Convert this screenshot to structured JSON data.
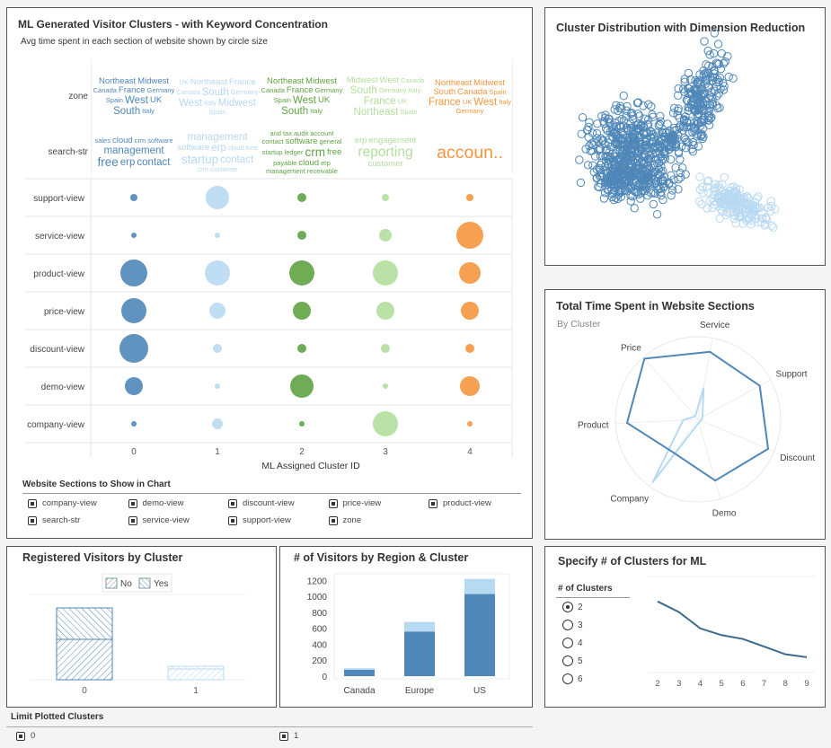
{
  "colors": {
    "cluster": [
      "#4f87b8",
      "#b8d9f2",
      "#5fa343",
      "#b2df9d",
      "#f5963f"
    ]
  },
  "bubble_panel": {
    "title": "ML Generated Visitor Clusters - with Keyword Concentration",
    "subtitle": "Avg time spent in each section of website shown by circle size",
    "cloud_rows": [
      "zone",
      "search-str"
    ],
    "clouds": {
      "zone": [
        [
          [
            "Northeast",
            2
          ],
          [
            "Midwest",
            2
          ],
          [
            "Canada",
            1
          ],
          [
            "France",
            2
          ],
          [
            "Germany",
            1
          ],
          [
            "Spain",
            1
          ],
          [
            "West",
            3
          ],
          [
            "UK",
            2
          ],
          [
            "South",
            3
          ],
          [
            "Italy",
            1
          ]
        ],
        [
          [
            "UK",
            1
          ],
          [
            "Northeast",
            2
          ],
          [
            "France",
            2
          ],
          [
            "Canada",
            1
          ],
          [
            "South",
            3
          ],
          [
            "Germany",
            1
          ],
          [
            "West",
            3
          ],
          [
            "Italy",
            1
          ],
          [
            "Midwest",
            3
          ],
          [
            "Spain",
            1
          ]
        ],
        [
          [
            "Northeast",
            2
          ],
          [
            "Midwest",
            2
          ],
          [
            "Canada",
            1
          ],
          [
            "France",
            2
          ],
          [
            "Germany",
            1
          ],
          [
            "Spain",
            1
          ],
          [
            "West",
            3
          ],
          [
            "UK",
            2
          ],
          [
            "South",
            3
          ],
          [
            "Italy",
            1
          ]
        ],
        [
          [
            "Midwest",
            2
          ],
          [
            "West",
            2
          ],
          [
            "Canada",
            1
          ],
          [
            "South",
            3
          ],
          [
            "Germany",
            1
          ],
          [
            "Italy",
            1
          ],
          [
            "France",
            3
          ],
          [
            "UK",
            1
          ],
          [
            "Northeast",
            3
          ],
          [
            "Spain",
            1
          ]
        ],
        [
          [
            "Northeast",
            2
          ],
          [
            "Midwest",
            2
          ],
          [
            "South",
            2
          ],
          [
            "Canada",
            2
          ],
          [
            "Spain",
            1
          ],
          [
            "France",
            3
          ],
          [
            "UK",
            1
          ],
          [
            "West",
            3
          ],
          [
            "Italy",
            1
          ],
          [
            "Germany",
            1
          ]
        ]
      ],
      "search_str": [
        [
          [
            "sales",
            1
          ],
          [
            "cloud",
            2
          ],
          [
            "crm",
            1
          ],
          [
            "software",
            1
          ],
          [
            "management",
            3
          ],
          [
            "free",
            4
          ],
          [
            "erp",
            3
          ],
          [
            "contact",
            3
          ]
        ],
        [
          [
            "management",
            3
          ],
          [
            "software",
            2
          ],
          [
            "erp",
            3
          ],
          [
            "cloud",
            1
          ],
          [
            "free",
            1
          ],
          [
            "startup",
            4
          ],
          [
            "contact",
            3
          ],
          [
            "crm",
            1
          ],
          [
            "customer",
            1
          ]
        ],
        [
          [
            "and",
            1
          ],
          [
            "tax",
            1
          ],
          [
            "audit",
            1
          ],
          [
            "account",
            1
          ],
          [
            "contact",
            1
          ],
          [
            "software",
            2
          ],
          [
            "general",
            1
          ],
          [
            "startup",
            1
          ],
          [
            "ledger",
            1
          ],
          [
            "crm",
            4
          ],
          [
            "free",
            2
          ],
          [
            "payable",
            1
          ],
          [
            "cloud",
            2
          ],
          [
            "erp",
            1
          ],
          [
            "management",
            1
          ],
          [
            "receivable",
            1
          ]
        ],
        [
          [
            "erp",
            2
          ],
          [
            "engagement",
            2
          ],
          [
            "reporting",
            5
          ],
          [
            "customer",
            2
          ]
        ],
        [
          [
            "accoun..",
            7
          ]
        ]
      ]
    },
    "xlabel": "ML Assigned Cluster ID"
  },
  "chart_data": [
    {
      "type": "scatter",
      "title": "ML Generated Visitor Clusters - with Keyword Concentration",
      "xlabel": "ML Assigned Cluster ID",
      "categories": [
        "0",
        "1",
        "2",
        "3",
        "4"
      ],
      "rows": [
        "support-view",
        "service-view",
        "product-view",
        "price-view",
        "discount-view",
        "demo-view",
        "company-view"
      ],
      "size_values": [
        [
          4,
          13,
          5,
          4,
          4
        ],
        [
          3,
          3,
          5,
          7,
          15
        ],
        [
          15,
          14,
          14,
          14,
          12
        ],
        [
          14,
          9,
          10,
          10,
          10
        ],
        [
          16,
          5,
          5,
          5,
          5
        ],
        [
          10,
          3,
          13,
          3,
          11
        ],
        [
          3,
          6,
          3,
          14,
          3
        ]
      ]
    },
    {
      "type": "scatter",
      "title": "Cluster Distribution with Dimension Reduction",
      "series": [
        {
          "cluster": "0",
          "color": "#4f87b8"
        },
        {
          "cluster": "1",
          "color": "#b8d9f2"
        }
      ]
    },
    {
      "type": "radar",
      "title": "Total Time Spent in Website Sections",
      "subtitle": "By Cluster",
      "axes": [
        "Service",
        "Support",
        "Discount",
        "Demo",
        "Company",
        "Product",
        "Price"
      ],
      "series": [
        {
          "values": [
            0.83,
            0.85,
            0.92,
            0.77,
            0.5,
            0.86,
            0.98
          ],
          "color": "#4f87b8"
        },
        {
          "values": [
            0.39,
            0.06,
            0.04,
            0.04,
            0.94,
            0.18,
            0.05
          ],
          "color": "#b8d9f2"
        }
      ]
    },
    {
      "type": "bar",
      "stacked": true,
      "title": "Registered Visitors by Cluster",
      "categories": [
        "0",
        "1"
      ],
      "series": [
        {
          "name": "No",
          "values": [
            45,
            12
          ]
        },
        {
          "name": "Yes",
          "values": [
            35,
            3
          ]
        }
      ],
      "legend": "top"
    },
    {
      "type": "bar",
      "stacked": true,
      "title": "# of Visitors by Region & Cluster",
      "categories": [
        "Canada",
        "Europe",
        "US"
      ],
      "series": [
        {
          "values": [
            80,
            560,
            1030
          ],
          "color": "#4f87b8"
        },
        {
          "values": [
            20,
            120,
            190
          ],
          "color": "#b8d9f2"
        }
      ],
      "yticks": [
        "0",
        "200",
        "400",
        "600",
        "800",
        "1000",
        "1200"
      ],
      "ylim": [
        0,
        1250
      ]
    },
    {
      "type": "line",
      "title": "Specify # of Clusters for ML",
      "x": [
        "2",
        "3",
        "4",
        "5",
        "6",
        "7",
        "8",
        "9"
      ],
      "values": [
        74,
        63,
        46,
        39,
        35,
        27,
        19,
        16
      ]
    }
  ],
  "sections_filter": {
    "title": "Website Sections to Show in Chart",
    "items": [
      "company-view",
      "demo-view",
      "discount-view",
      "price-view",
      "product-view",
      "search-str",
      "service-view",
      "support-view",
      "zone"
    ]
  },
  "clusters_control": {
    "title": "Specify # of Clusters for ML",
    "label": "# of Clusters",
    "options": [
      "2",
      "3",
      "4",
      "5",
      "6"
    ],
    "selected": "2"
  },
  "limit": {
    "title": "Limit Plotted Clusters",
    "items": [
      "0",
      "1"
    ]
  }
}
